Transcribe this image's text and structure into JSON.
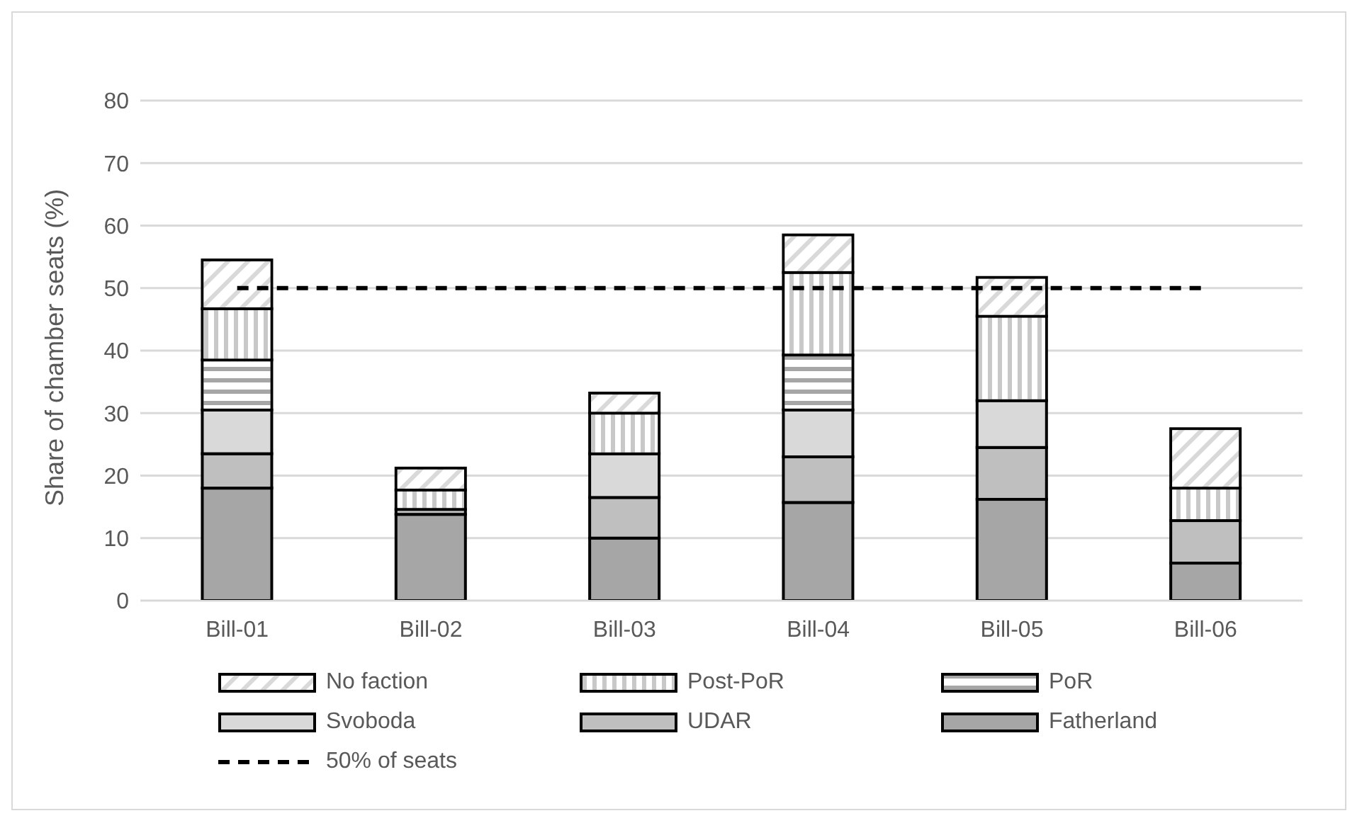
{
  "chart_data": {
    "type": "bar",
    "stacked": true,
    "ylabel": "Share of chamber seats (%)",
    "categories": [
      "Bill-01",
      "Bill-02",
      "Bill-03",
      "Bill-04",
      "Bill-05",
      "Bill-06"
    ],
    "series": [
      {
        "name": "Fatherland",
        "color": "#a6a6a6",
        "values": [
          18,
          13.8,
          10,
          15.7,
          16.2,
          6
        ]
      },
      {
        "name": "UDAR",
        "color": "#bfbfbf",
        "values": [
          5.5,
          0.8,
          6.5,
          7.3,
          8.3,
          6.8
        ]
      },
      {
        "name": "Svoboda",
        "color": "#d9d9d9",
        "values": [
          7,
          0,
          7,
          7.5,
          7.5,
          null
        ]
      },
      {
        "name": "PoR",
        "color": "#a6a6a6",
        "values": [
          8,
          0,
          0,
          8.8,
          null,
          0
        ]
      },
      {
        "name": "Post-PoR",
        "color": "#c8c8c8",
        "values": [
          8.2,
          3.1,
          6.5,
          13.2,
          13.5,
          5.2
        ]
      },
      {
        "name": "No faction",
        "color": "#d9d9d9",
        "values": [
          7.8,
          3.5,
          3.2,
          6,
          6.2,
          9.5
        ]
      }
    ],
    "ylim": [
      0,
      80
    ],
    "yticks": [
      0,
      10,
      20,
      30,
      40,
      50,
      60,
      70,
      80
    ],
    "grid": "y",
    "legend": "bottom",
    "ref_lines": [
      {
        "axis": "y",
        "value": 50,
        "label": "50% of seats",
        "color": "#000000",
        "line_style": "dashed"
      }
    ]
  }
}
